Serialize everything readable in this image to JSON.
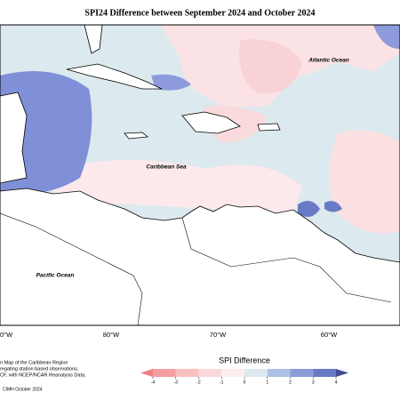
{
  "map": {
    "title": "SPI24 Difference between September 2024 and October 2024",
    "places": [
      "Atlantic Ocean",
      "Caribbean Sea",
      "Pacific Ocean"
    ],
    "lon_labels": [
      "0°W",
      "80°W",
      "70°W",
      "60°W"
    ],
    "colorbar": {
      "title": "SPI Difference",
      "ticks": [
        -4,
        -3,
        -2,
        -1,
        0,
        1,
        2,
        3,
        4
      ],
      "colors": [
        "#f07f86",
        "#f59ea2",
        "#f8bfc1",
        "#fbd9da",
        "#fdeeee",
        "#dbe9ee",
        "#aebfe6",
        "#8c9cd9",
        "#6a79c4",
        "#434b92"
      ]
    },
    "footnote": [
      "n Map of the Caribbean Region",
      "regating station based observations,",
      "CF, with NCEP/NCAR Reanalysis Data."
    ],
    "credit": "CIMH October 2024"
  }
}
